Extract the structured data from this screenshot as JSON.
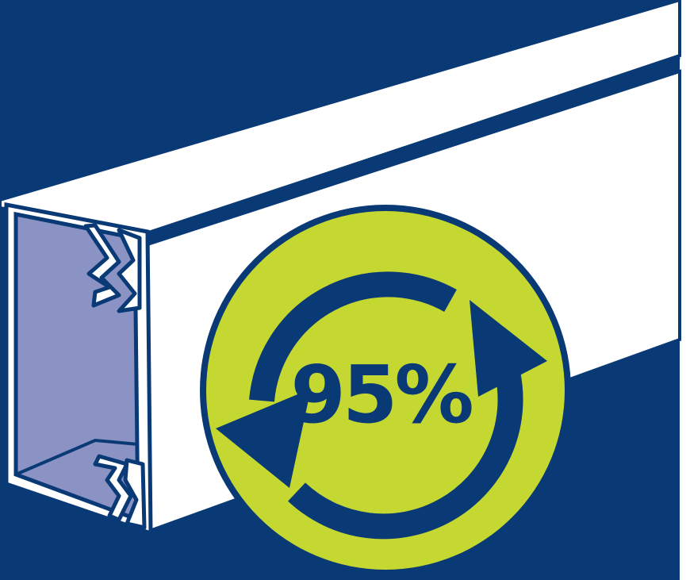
{
  "badge": {
    "percent_text": "95%"
  },
  "colors": {
    "background_navy": "#0a3a75",
    "trunking_white": "#ffffff",
    "trunking_outline": "#0a3a75",
    "interior_lavender": "#8b92c4",
    "badge_lime": "#c5d832",
    "arrow_navy": "#0a3a75"
  },
  "icons": {
    "recycle_arrows": "circular-recycle-arrows-icon",
    "trunking": "cable-trunking-illustration"
  }
}
